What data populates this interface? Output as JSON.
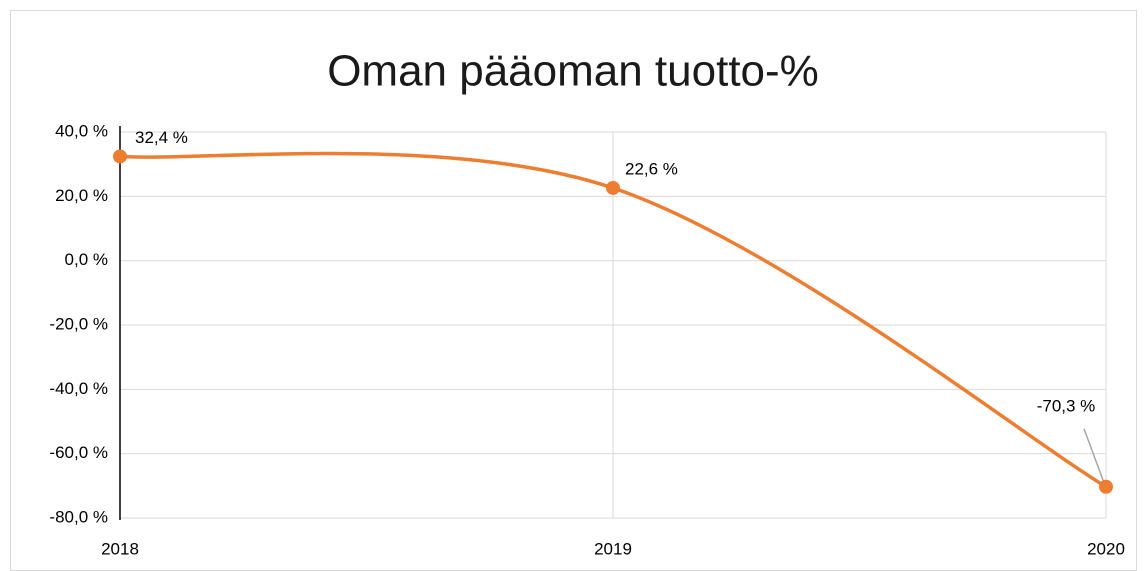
{
  "chart_data": {
    "type": "line",
    "title": "Oman pääoman tuotto-%",
    "categories": [
      "2018",
      "2019",
      "2020"
    ],
    "values": [
      32.4,
      22.6,
      -70.3
    ],
    "value_labels": [
      "32,4 %",
      "22,6 %",
      "-70,3 %"
    ],
    "color": "#ed7d31",
    "smooth": true,
    "ylim": [
      -80,
      40
    ],
    "yticks": [
      {
        "value": -80,
        "label": "-80,0 %"
      },
      {
        "value": -60,
        "label": "-60,0 %"
      },
      {
        "value": -40,
        "label": "-40,0 %"
      },
      {
        "value": -20,
        "label": "-20,0 %"
      },
      {
        "value": 0,
        "label": "0,0 %"
      },
      {
        "value": 20,
        "label": "20,0 %"
      },
      {
        "value": 40,
        "label": "40,0 %"
      }
    ],
    "grid": true
  }
}
